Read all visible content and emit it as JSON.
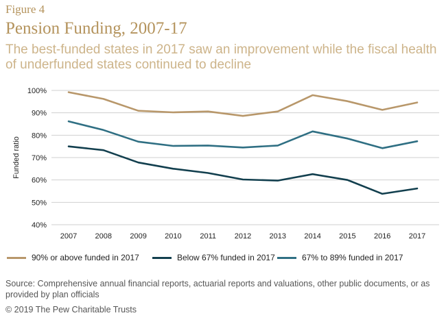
{
  "figure_label": "Figure 4",
  "title": "Pension Funding, 2007-17",
  "subtitle": "The best-funded states in 2017 saw an improvement while the fiscal health of underfunded states continued to decline",
  "source": "Source: Comprehensive annual financial reports, actuarial reports and valuations, other public documents, or as provided by plan officials",
  "copyright": "© 2019 The Pew Charitable Trusts",
  "chart_data": {
    "type": "line",
    "ylabel": "Funded ratio",
    "xlabel": "",
    "ylim": [
      40,
      100
    ],
    "yticks": [
      "40%",
      "50%",
      "60%",
      "70%",
      "80%",
      "90%",
      "100%"
    ],
    "grid": "horizontal",
    "legend_position": "bottom",
    "categories": [
      "2007",
      "2008",
      "2009",
      "2010",
      "2011",
      "2012",
      "2013",
      "2014",
      "2015",
      "2016",
      "2017"
    ],
    "series": [
      {
        "name": "90% or above funded in 2017",
        "color": "#b8976a",
        "values": [
          99.2,
          96.2,
          90.9,
          90.2,
          90.6,
          88.6,
          90.6,
          97.9,
          95.2,
          91.3,
          94.6
        ]
      },
      {
        "name": "Below 67% funded in 2017",
        "color": "#123f4e",
        "values": [
          75.0,
          73.3,
          67.8,
          65.0,
          63.1,
          60.2,
          59.7,
          62.6,
          60.0,
          53.8,
          56.2
        ]
      },
      {
        "name": "67% to 89% funded in 2017",
        "color": "#2f6f83",
        "values": [
          86.2,
          82.3,
          77.1,
          75.2,
          75.4,
          74.5,
          75.4,
          81.7,
          78.5,
          74.2,
          77.3
        ]
      }
    ]
  }
}
